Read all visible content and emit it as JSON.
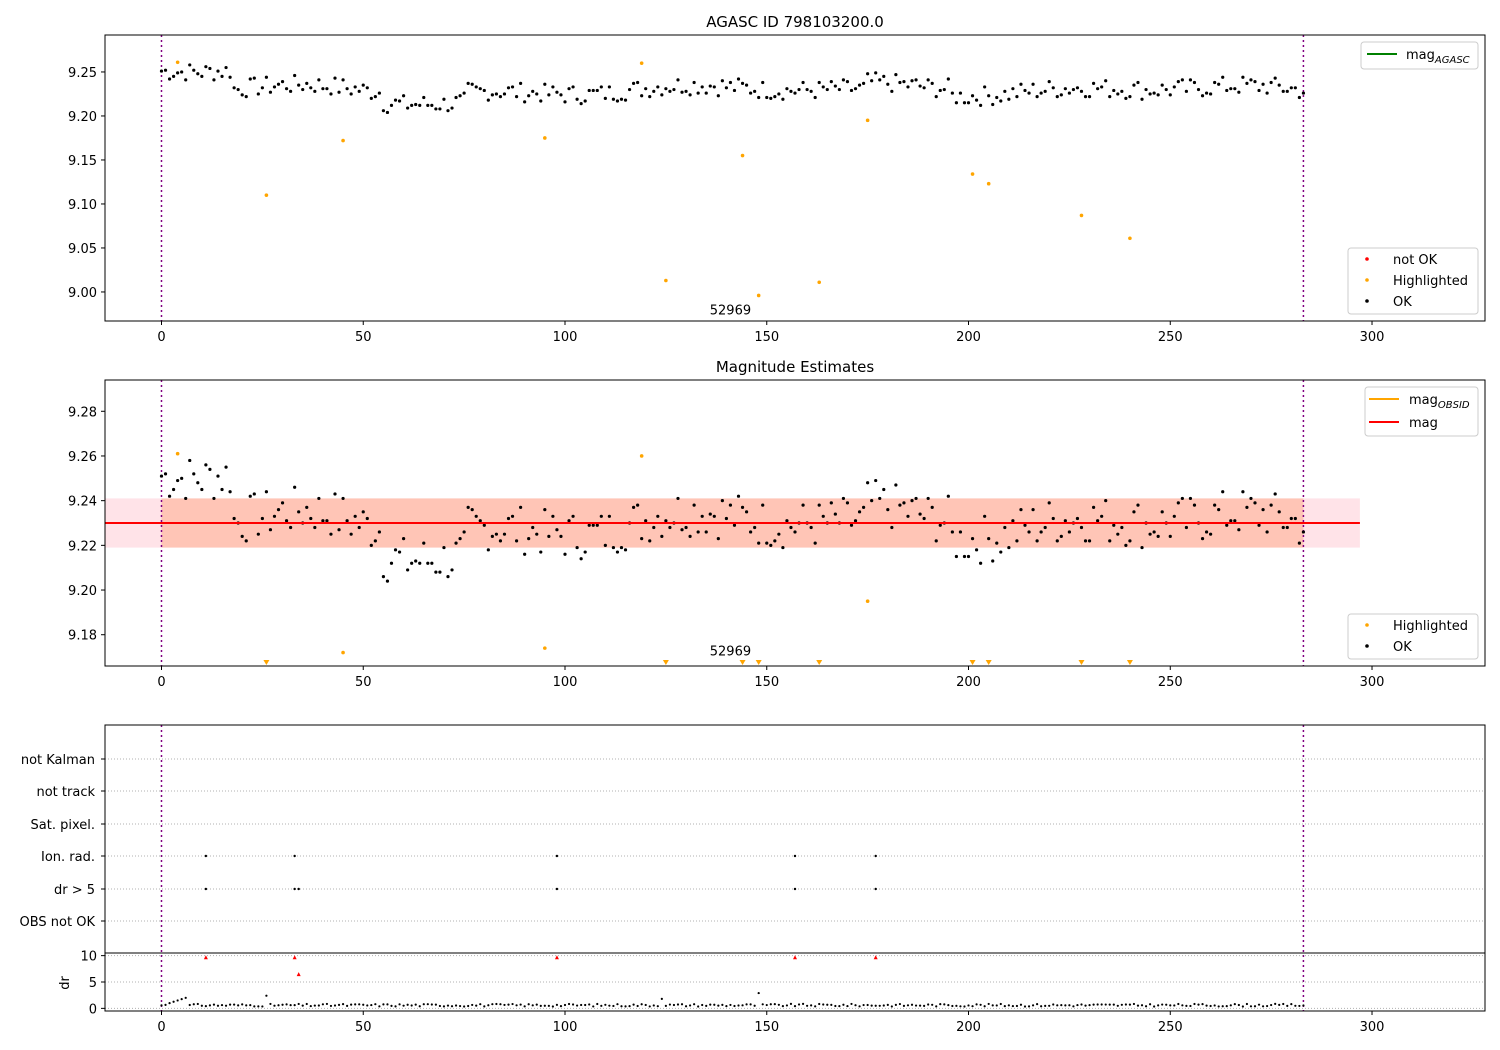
{
  "colors": {
    "ok": "#000000",
    "highlighted": "#ffa500",
    "not_ok": "#ff0000",
    "mag_agasc": "#008000",
    "mag_obsid": "#ffa500",
    "mag": "#ff0000",
    "band_outer": "#ffc0cb",
    "band_inner": "#ffa07a",
    "vline": "#800080"
  },
  "chart_data": [
    {
      "type": "scatter",
      "title": "AGASC ID 798103200.0",
      "xlim": [
        -14,
        328
      ],
      "ylim": [
        8.967,
        9.292
      ],
      "xticks": [
        0,
        50,
        100,
        150,
        200,
        250,
        300
      ],
      "yticks": [
        9.0,
        9.05,
        9.1,
        9.15,
        9.2,
        9.25
      ],
      "vlines": [
        0,
        283
      ],
      "annotation": {
        "text": "52969",
        "x": 141,
        "y": 8.97
      },
      "legend_lines": [
        {
          "label": "mag",
          "sub": "AGASC",
          "color_key": "mag_agasc"
        }
      ],
      "legend_markers": [
        {
          "label": "not OK",
          "color_key": "not_ok"
        },
        {
          "label": "Highlighted",
          "color_key": "highlighted"
        },
        {
          "label": "OK",
          "color_key": "ok"
        }
      ],
      "highlighted": [
        [
          4,
          9.261
        ],
        [
          26,
          9.11
        ],
        [
          45,
          9.172
        ],
        [
          95,
          9.175
        ],
        [
          119,
          9.26
        ],
        [
          125,
          9.013
        ],
        [
          144,
          9.155
        ],
        [
          148,
          8.996
        ],
        [
          163,
          9.011
        ],
        [
          175,
          9.195
        ],
        [
          201,
          9.134
        ],
        [
          205,
          9.123
        ],
        [
          228,
          9.087
        ],
        [
          240,
          9.061
        ]
      ]
    },
    {
      "type": "scatter",
      "title": "Magnitude Estimates",
      "xlim": [
        -14,
        328
      ],
      "ylim": [
        9.166,
        9.294
      ],
      "xticks": [
        0,
        50,
        100,
        150,
        200,
        250,
        300
      ],
      "yticks": [
        9.18,
        9.2,
        9.22,
        9.24,
        9.26,
        9.28
      ],
      "vlines": [
        0,
        283
      ],
      "mag_line": {
        "y": 9.23,
        "x": [
          -14,
          297
        ]
      },
      "band_outer": {
        "y": [
          9.219,
          9.241
        ],
        "x": [
          -14,
          297
        ]
      },
      "band_inner": {
        "y": [
          9.219,
          9.241
        ],
        "x": [
          0,
          283
        ]
      },
      "annotation": {
        "text": "52969",
        "x": 141,
        "y": 9.169
      },
      "legend_lines": [
        {
          "label": "mag",
          "sub": "OBSID",
          "color_key": "mag_obsid"
        },
        {
          "label": "mag",
          "sub": "",
          "color_key": "mag"
        }
      ],
      "legend_markers": [
        {
          "label": "Highlighted",
          "color_key": "highlighted"
        },
        {
          "label": "OK",
          "color_key": "ok"
        }
      ],
      "highlighted": [
        [
          4,
          9.261
        ],
        [
          45,
          9.172
        ],
        [
          95,
          9.174
        ],
        [
          119,
          9.26
        ],
        [
          175,
          9.195
        ]
      ],
      "below_range": [
        26,
        125,
        144,
        148,
        163,
        201,
        205,
        228,
        240
      ]
    },
    {
      "type": "scatter",
      "xlim": [
        -14,
        328
      ],
      "xticks": [
        0,
        50,
        100,
        150,
        200,
        250,
        300
      ],
      "vlines": [
        0,
        283
      ],
      "flag_rows": [
        "not Kalman",
        "not track",
        "Sat. pixel.",
        "Ion. rad.",
        "dr > 5",
        "OBS not OK"
      ],
      "flag_points": {
        "Ion. rad.": [
          11,
          33,
          98,
          157,
          177
        ],
        "dr > 5": [
          11,
          33,
          34,
          98,
          157,
          177
        ]
      },
      "dr_ylabel": "dr",
      "dr_ylim": [
        -0.5,
        10.5
      ],
      "dr_yticks": [
        0,
        5,
        10
      ],
      "dr_red": [
        [
          11,
          9.7
        ],
        [
          33,
          9.7
        ],
        [
          34,
          6.5
        ],
        [
          98,
          9.7
        ],
        [
          157,
          9.7
        ],
        [
          177,
          9.7
        ]
      ],
      "dr_spikes": [
        [
          26,
          2.4
        ],
        [
          148,
          2.9
        ],
        [
          124,
          1.8
        ]
      ]
    }
  ]
}
